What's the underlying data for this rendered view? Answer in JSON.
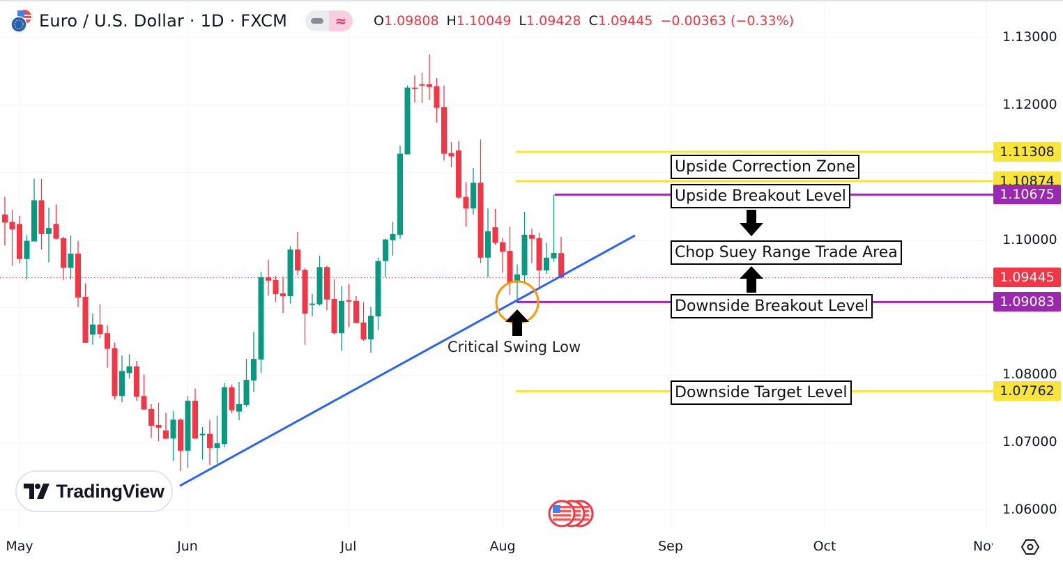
{
  "header": {
    "symbol_title": "Euro / U.S. Dollar · 1D · FXCM",
    "pill_left_icon": "minus-icon",
    "pill_right_icon": "approx-icon",
    "pill_right_glyph": "≈",
    "ohlc": {
      "o_label": "O",
      "o_value": "1.09808",
      "h_label": "H",
      "h_value": "1.10049",
      "l_label": "L",
      "l_value": "1.09428",
      "c_label": "C",
      "c_value": "1.09445",
      "change": "−0.00363 (−0.33%)"
    }
  },
  "logo": {
    "text": "TradingView"
  },
  "colors": {
    "up": "#089981",
    "down": "#F23645",
    "yellow": "#F9E43A",
    "purple": "#9C27B0",
    "trend": "#2962FF",
    "circle": "#FF9800",
    "grid": "#F0F3FA"
  },
  "chart_data": {
    "type": "candlestick",
    "title": "Euro / U.S. Dollar · 1D · FXCM",
    "ylim": [
      1.0575,
      1.1355
    ],
    "y_ticks": [
      "1.13000",
      "1.12000",
      "1.10000",
      "1.08000",
      "1.07000",
      "1.06000"
    ],
    "y_tick_values": [
      1.13,
      1.12,
      1.1,
      1.08,
      1.07,
      1.06
    ],
    "x_ticks": [
      "May",
      "Jun",
      "Jul",
      "Aug",
      "Sep",
      "Oct",
      "Nov"
    ],
    "grid": true,
    "ohlc_note": "each entry [open, high, low, close], daily bars from early May",
    "candles": [
      [
        1.1038,
        1.1064,
        1.0992,
        1.1026
      ],
      [
        1.1027,
        1.1045,
        1.0962,
        1.1016
      ],
      [
        1.1024,
        1.1036,
        1.0966,
        1.0972
      ],
      [
        1.0972,
        1.1008,
        1.0942,
        1.0999
      ],
      [
        1.0998,
        1.1091,
        1.0998,
        1.1059
      ],
      [
        1.1059,
        1.1091,
        1.0986,
        1.1009
      ],
      [
        1.1009,
        1.1048,
        1.0967,
        1.1018
      ],
      [
        1.1024,
        1.1053,
        1.1001,
        1.1002
      ],
      [
        1.1003,
        1.1005,
        1.0941,
        1.0959
      ],
      [
        1.0959,
        1.1007,
        1.0942,
        1.098
      ],
      [
        1.098,
        1.0999,
        1.0901,
        1.0915
      ],
      [
        1.0916,
        1.0936,
        1.0848,
        1.0848
      ],
      [
        1.086,
        1.0891,
        1.0845,
        1.0875
      ],
      [
        1.0875,
        1.0905,
        1.0855,
        1.0861
      ],
      [
        1.0862,
        1.0874,
        1.0811,
        1.0839
      ],
      [
        1.084,
        1.0848,
        1.0764,
        1.0769
      ],
      [
        1.0769,
        1.0829,
        1.076,
        1.0806
      ],
      [
        1.0803,
        1.0831,
        1.0795,
        1.0813
      ],
      [
        1.0813,
        1.0821,
        1.0762,
        1.0768
      ],
      [
        1.0769,
        1.0801,
        1.0749,
        1.0749
      ],
      [
        1.075,
        1.0757,
        1.0707,
        1.0725
      ],
      [
        1.0726,
        1.0759,
        1.0702,
        1.0722
      ],
      [
        1.0718,
        1.0744,
        1.0705,
        1.0706
      ],
      [
        1.0706,
        1.0747,
        1.0673,
        1.0734
      ],
      [
        1.0734,
        1.0736,
        1.0658,
        1.0688
      ],
      [
        1.0688,
        1.0769,
        1.0662,
        1.0762
      ],
      [
        1.0762,
        1.078,
        1.0706,
        1.0706
      ],
      [
        1.0711,
        1.0723,
        1.0675,
        1.0713
      ],
      [
        1.0713,
        1.0733,
        1.0667,
        1.0692
      ],
      [
        1.0692,
        1.074,
        1.0669,
        1.0699
      ],
      [
        1.0698,
        1.0788,
        1.0693,
        1.0782
      ],
      [
        1.0782,
        1.0786,
        1.0744,
        1.0748
      ],
      [
        1.0746,
        1.079,
        1.0733,
        1.0757
      ],
      [
        1.0756,
        1.0824,
        1.0753,
        1.0793
      ],
      [
        1.0792,
        1.0864,
        1.0775,
        1.0824
      ],
      [
        1.0823,
        1.0953,
        1.0803,
        1.0945
      ],
      [
        1.0945,
        1.0971,
        1.0918,
        1.094
      ],
      [
        1.0941,
        1.0947,
        1.0908,
        1.092
      ],
      [
        1.0921,
        1.0946,
        1.0892,
        1.0917
      ],
      [
        1.0917,
        1.0991,
        1.0906,
        1.0986
      ],
      [
        1.0986,
        1.1012,
        1.0948,
        1.0955
      ],
      [
        1.0956,
        1.0959,
        1.0845,
        1.0891
      ],
      [
        1.0905,
        1.092,
        1.0887,
        1.0906
      ],
      [
        1.0905,
        1.0977,
        1.0903,
        1.096
      ],
      [
        1.096,
        1.0962,
        1.0896,
        1.0912
      ],
      [
        1.0913,
        1.0942,
        1.086,
        1.0862
      ],
      [
        1.0862,
        1.0932,
        1.0836,
        1.091
      ],
      [
        1.0911,
        1.0935,
        1.0871,
        1.0909
      ],
      [
        1.091,
        1.0917,
        1.0877,
        1.0877
      ],
      [
        1.0878,
        1.0908,
        1.0851,
        1.0853
      ],
      [
        1.0853,
        1.0901,
        1.0833,
        1.0888
      ],
      [
        1.0887,
        1.0974,
        1.0867,
        1.0969
      ],
      [
        1.0969,
        1.1002,
        1.0945,
        1.1001
      ],
      [
        1.1,
        1.1027,
        1.0977,
        1.1009
      ],
      [
        1.1008,
        1.114,
        1.1002,
        1.1128
      ],
      [
        1.1127,
        1.1229,
        1.1127,
        1.1226
      ],
      [
        1.1226,
        1.1244,
        1.1204,
        1.1224
      ],
      [
        1.1231,
        1.1248,
        1.1203,
        1.123
      ],
      [
        1.1231,
        1.1275,
        1.1208,
        1.1227
      ],
      [
        1.1228,
        1.124,
        1.1174,
        1.1196
      ],
      [
        1.1197,
        1.1229,
        1.1118,
        1.1128
      ],
      [
        1.1129,
        1.1145,
        1.1108,
        1.1124
      ],
      [
        1.1133,
        1.1147,
        1.1061,
        1.1063
      ],
      [
        1.1064,
        1.1086,
        1.102,
        1.1047
      ],
      [
        1.1047,
        1.1107,
        1.1038,
        1.1085
      ],
      [
        1.1085,
        1.1149,
        1.0966,
        1.0974
      ],
      [
        1.0974,
        1.1047,
        1.0945,
        1.1013
      ],
      [
        1.1019,
        1.1046,
        1.0993,
        1.0996
      ],
      [
        1.0997,
        1.1003,
        1.0952,
        1.0983
      ],
      [
        1.0984,
        1.102,
        1.0919,
        1.0937
      ],
      [
        1.0937,
        1.0964,
        1.0913,
        1.0949
      ],
      [
        1.0948,
        1.1042,
        1.0935,
        1.1008
      ],
      [
        1.1008,
        1.1017,
        1.0966,
        1.1002
      ],
      [
        1.1003,
        1.1011,
        1.0929,
        1.0955
      ],
      [
        1.0955,
        1.0996,
        1.095,
        1.0974
      ],
      [
        1.0973,
        1.1067,
        1.0968,
        1.0981
      ],
      [
        1.09808,
        1.10049,
        1.09428,
        1.09445
      ]
    ],
    "current_price": 1.09445,
    "levels": [
      {
        "name": "upside-correction-top",
        "price": 1.11308,
        "label": "1.11308",
        "color": "yellow",
        "start_bar": 69.8
      },
      {
        "name": "upside-correction-bottom",
        "price": 1.10874,
        "label": "1.10874",
        "color": "yellow",
        "start_bar": 69.8
      },
      {
        "name": "upside-breakout",
        "price": 1.10675,
        "label": "1.10675",
        "color": "purple",
        "start_bar": 75.1
      },
      {
        "name": "downside-breakout",
        "price": 1.09083,
        "label": "1.09083",
        "color": "purple",
        "start_bar": 69.9
      },
      {
        "name": "downside-target",
        "price": 1.07762,
        "label": "1.07762",
        "color": "yellow",
        "start_bar": 69.8
      }
    ],
    "current_price_label": "1.09445",
    "trendline": {
      "start": {
        "bar": 23.9,
        "price": 1.0636
      },
      "end": {
        "bar": 86.1,
        "price": 1.1007
      }
    },
    "swing_low_marker": {
      "bar": 70.0,
      "price": 1.0908
    },
    "annotations": {
      "upside_correction_zone": "Upside Correction Zone",
      "upside_breakout_level": "Upside Breakout Level",
      "chop_suey": "Chop Suey Range Trade Area",
      "downside_breakout_level": "Downside Breakout Level",
      "downside_target_level": "Downside Target Level",
      "critical_swing_low": "Critical Swing Low"
    }
  }
}
